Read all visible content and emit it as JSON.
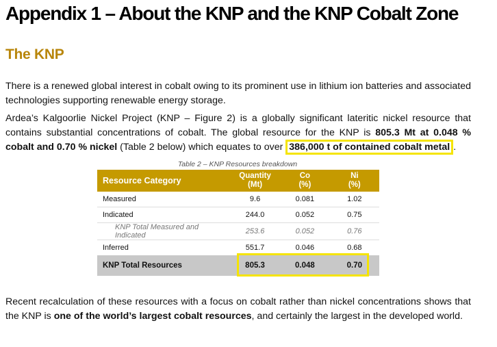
{
  "heading": "Appendix 1 – About the KNP and the KNP Cobalt Zone",
  "subheading": "The KNP",
  "paragraph1": "There is a renewed global interest in cobalt owing to its prominent use in lithium ion batteries and associated technologies supporting renewable energy storage.",
  "paragraph2": {
    "part1": "Ardea’s Kalgoorlie Nickel Project (KNP – Figure 2) is a globally significant lateritic nickel resource that contains substantial concentrations of cobalt. The global resource for the KNP is ",
    "bold1": "805.3 Mt at 0.048 % cobalt and 0.70 % nickel",
    "part2": " (Table 2 below) which equates to over ",
    "highlight": "386,000 t of contained cobalt metal",
    "part3": "."
  },
  "table": {
    "caption": "Table 2 – KNP Resources breakdown",
    "headers": {
      "category": "Resource Category",
      "quantity": "Quantity",
      "quantity_unit": "(Mt)",
      "co": "Co",
      "co_unit": "(%)",
      "ni": "Ni",
      "ni_unit": "(%)"
    },
    "rows": [
      {
        "category": "Measured",
        "quantity": "9.6",
        "co": "0.081",
        "ni": "1.02"
      },
      {
        "category": "Indicated",
        "quantity": "244.0",
        "co": "0.052",
        "ni": "0.75"
      },
      {
        "category": "KNP Total Measured and Indicated",
        "quantity": "253.6",
        "co": "0.052",
        "ni": "0.76"
      },
      {
        "category": "Inferred",
        "quantity": "551.7",
        "co": "0.046",
        "ni": "0.68"
      },
      {
        "category": "KNP Total Resources",
        "quantity": "805.3",
        "co": "0.048",
        "ni": "0.70"
      }
    ]
  },
  "paragraph3": {
    "part1": "Recent recalculation of these resources with a focus on cobalt rather than nickel concentrations shows that the KNP is ",
    "bold1": "one of the world’s largest cobalt resources",
    "part2": ", and certainly the largest in the developed world."
  },
  "colors": {
    "accent_gold": "#c59a00",
    "subheading": "#b8860b",
    "highlight_box": "#f5e400",
    "total_row_bg": "#c8c8c8"
  }
}
